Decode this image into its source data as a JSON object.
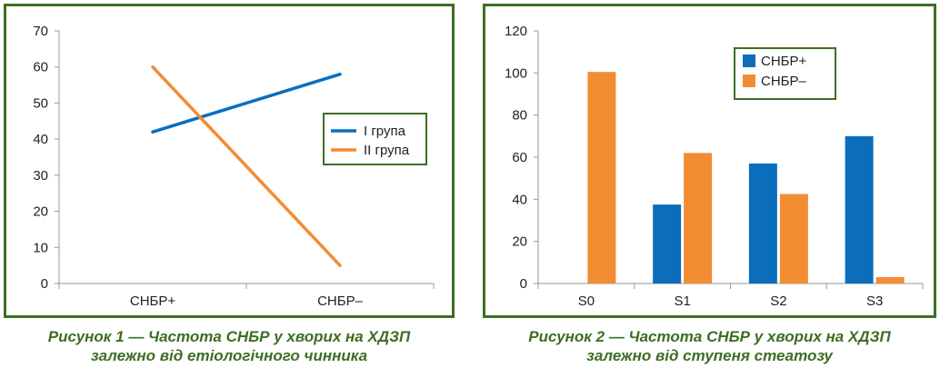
{
  "colors": {
    "frame": "#3c6e23",
    "caption": "#3c6e23",
    "blue": "#0a6ebd",
    "orange": "#f28c33",
    "grid": "#999999"
  },
  "figures": [
    {
      "caption_line1": "Рисунок 1 — Частота СНБР у хворих на ХДЗП",
      "caption_line2": "залежно від етіологічного чинника"
    },
    {
      "caption_line1": "Рисунок 2 — Частота СНБР у хворих на ХДЗП",
      "caption_line2": "залежно від ступеня стеатозу"
    }
  ],
  "chart_data": [
    {
      "type": "line",
      "categories": [
        "СНБР+",
        "СНБР–"
      ],
      "ylim": [
        0,
        70
      ],
      "yticks": [
        0,
        10,
        20,
        30,
        40,
        50,
        60,
        70
      ],
      "grid": false,
      "legend_position": "right",
      "series": [
        {
          "name": "I група",
          "values": [
            42,
            58
          ],
          "color": "#0a6ebd"
        },
        {
          "name": "II група",
          "values": [
            60,
            5
          ],
          "color": "#f28c33"
        }
      ]
    },
    {
      "type": "bar",
      "categories": [
        "S0",
        "S1",
        "S2",
        "S3"
      ],
      "ylim": [
        0,
        120
      ],
      "yticks": [
        0,
        20,
        40,
        60,
        80,
        100,
        120
      ],
      "grid": false,
      "legend_position": "top-right",
      "series": [
        {
          "name": "СНБР+",
          "values": [
            0,
            37.5,
            57,
            70
          ],
          "color": "#0a6ebd"
        },
        {
          "name": "СНБР–",
          "values": [
            100.5,
            62,
            42.5,
            3
          ],
          "color": "#f28c33"
        }
      ]
    }
  ]
}
